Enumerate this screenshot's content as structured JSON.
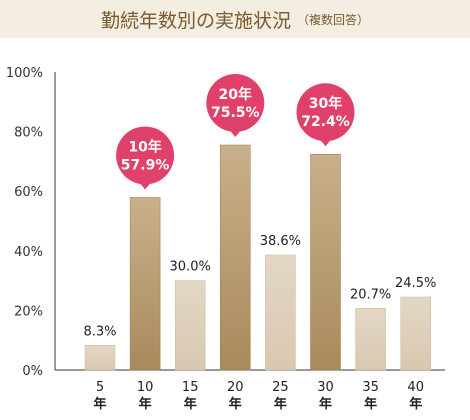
{
  "header": {
    "title": "勤続年数別の実施状況",
    "subtitle": "（複数回答）"
  },
  "chart_data": {
    "type": "bar",
    "title": "勤続年数別の実施状況",
    "subtitle": "（複数回答）",
    "categories": [
      {
        "num": "5",
        "unit": "年"
      },
      {
        "num": "10",
        "unit": "年"
      },
      {
        "num": "15",
        "unit": "年"
      },
      {
        "num": "20",
        "unit": "年"
      },
      {
        "num": "25",
        "unit": "年"
      },
      {
        "num": "30",
        "unit": "年"
      },
      {
        "num": "35",
        "unit": "年"
      },
      {
        "num": "40",
        "unit": "年"
      }
    ],
    "values": [
      8.3,
      57.9,
      30.0,
      75.5,
      38.6,
      72.4,
      20.7,
      24.5
    ],
    "value_labels": [
      "8.3%",
      "57.9%",
      "30.0%",
      "75.5%",
      "38.6%",
      "72.4%",
      "20.7%",
      "24.5%"
    ],
    "highlighted": [
      false,
      true,
      false,
      true,
      false,
      true,
      false,
      false
    ],
    "callouts": [
      {
        "index": 1,
        "line1": "10年",
        "line2": "57.9%"
      },
      {
        "index": 3,
        "line1": "20年",
        "line2": "75.5%"
      },
      {
        "index": 5,
        "line1": "30年",
        "line2": "72.4%"
      }
    ],
    "yticks": [
      "0%",
      "20%",
      "40%",
      "60%",
      "80%",
      "100%"
    ],
    "ylim": [
      0,
      100
    ],
    "xlabel": "",
    "ylabel": "",
    "grid": false,
    "colors": {
      "bar_normal": "#d8c8b0",
      "bar_highlight": "#a88a5c",
      "callout": "#e0416b",
      "axis": "#333333"
    }
  }
}
